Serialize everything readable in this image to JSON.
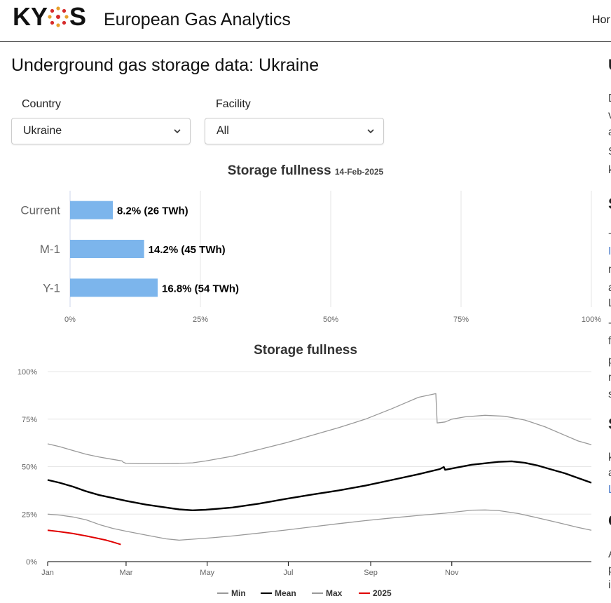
{
  "header": {
    "logo_text": "KYOS",
    "site_title": "European Gas Analytics",
    "nav_home": "Hor"
  },
  "page": {
    "title": "Underground gas storage data: Ukraine"
  },
  "filters": {
    "country": {
      "label": "Country",
      "value": "Ukraine"
    },
    "facility": {
      "label": "Facility",
      "value": "All"
    }
  },
  "right_column_fragments": [
    {
      "t": "U",
      "h": true
    },
    {
      "t": "D"
    },
    {
      "t": "v"
    },
    {
      "t": "a"
    },
    {
      "t": "S"
    },
    {
      "t": "k"
    },
    {
      "t": "S",
      "h": true
    },
    {
      "t": "-"
    },
    {
      "t": "I",
      "link": true
    },
    {
      "t": "r"
    },
    {
      "t": "a"
    },
    {
      "t": "L"
    },
    {
      "t": "-"
    },
    {
      "t": "f"
    },
    {
      "t": "p"
    },
    {
      "t": "r"
    },
    {
      "t": "s"
    },
    {
      "t": "S",
      "h": true
    },
    {
      "t": "k"
    },
    {
      "t": "a"
    },
    {
      "t": "L",
      "link": true
    },
    {
      "t": "C",
      "h": true
    },
    {
      "t": "A"
    },
    {
      "t": "p"
    },
    {
      "t": "i"
    }
  ],
  "chart_data": [
    {
      "type": "bar",
      "orientation": "horizontal",
      "title": "Storage fullness",
      "date": "14-Feb-2025",
      "categories": [
        "Current",
        "M-1",
        "Y-1"
      ],
      "values": [
        8.2,
        14.2,
        16.8
      ],
      "labels": [
        "8.2% (26 TWh)",
        "14.2% (45 TWh)",
        "16.8% (54 TWh)"
      ],
      "xlim": [
        0,
        100
      ],
      "xticks": [
        "0%",
        "25%",
        "50%",
        "75%",
        "100%"
      ],
      "bar_color": "#7cb5ec",
      "grid": true
    },
    {
      "type": "line",
      "title": "Storage fullness",
      "ylim": [
        0,
        100
      ],
      "yticks": [
        "0%",
        "25%",
        "50%",
        "75%",
        "100%"
      ],
      "xticks": [
        "Jan",
        "Mar",
        "May",
        "Jul",
        "Sep",
        "Nov"
      ],
      "x_unit": "day of year",
      "legend_position": "bottom",
      "series": [
        {
          "name": "Min",
          "color": "#999999",
          "width": 1.3,
          "points": [
            [
              1,
              25
            ],
            [
              10,
              24.5
            ],
            [
              20,
              23.5
            ],
            [
              30,
              22
            ],
            [
              40,
              19.5
            ],
            [
              50,
              17.5
            ],
            [
              60,
              16
            ],
            [
              75,
              14
            ],
            [
              90,
              12
            ],
            [
              100,
              11.3
            ],
            [
              110,
              11.8
            ],
            [
              125,
              12.6
            ],
            [
              140,
              13.5
            ],
            [
              160,
              15
            ],
            [
              180,
              16.6
            ],
            [
              200,
              18.3
            ],
            [
              220,
              20
            ],
            [
              240,
              21.6
            ],
            [
              260,
              23
            ],
            [
              280,
              24.3
            ],
            [
              300,
              25.5
            ],
            [
              320,
              27.1
            ],
            [
              330,
              27.2
            ],
            [
              340,
              26.9
            ],
            [
              355,
              25.3
            ],
            [
              370,
              23
            ],
            [
              385,
              20.5
            ],
            [
              400,
              18
            ],
            [
              410,
              16.5
            ]
          ]
        },
        {
          "name": "Mean",
          "color": "#000000",
          "width": 2.4,
          "points": [
            [
              1,
              43
            ],
            [
              10,
              41.5
            ],
            [
              20,
              39.5
            ],
            [
              30,
              37
            ],
            [
              40,
              35
            ],
            [
              50,
              33.5
            ],
            [
              60,
              32
            ],
            [
              75,
              30
            ],
            [
              90,
              28.5
            ],
            [
              100,
              27.5
            ],
            [
              110,
              27
            ],
            [
              120,
              27.3
            ],
            [
              140,
              28.5
            ],
            [
              160,
              30.5
            ],
            [
              180,
              33
            ],
            [
              200,
              35.3
            ],
            [
              220,
              37.5
            ],
            [
              240,
              40
            ],
            [
              260,
              43
            ],
            [
              280,
              46
            ],
            [
              296,
              48.7
            ],
            [
              299,
              49.8
            ],
            [
              300,
              48.3
            ],
            [
              305,
              49
            ],
            [
              320,
              51
            ],
            [
              340,
              52.5
            ],
            [
              350,
              52.8
            ],
            [
              360,
              52
            ],
            [
              370,
              50.5
            ],
            [
              380,
              48.5
            ],
            [
              390,
              46.5
            ],
            [
              400,
              44
            ],
            [
              410,
              41.5
            ]
          ]
        },
        {
          "name": "Max",
          "color": "#999999",
          "width": 1.3,
          "points": [
            [
              1,
              62
            ],
            [
              10,
              60.5
            ],
            [
              20,
              58.5
            ],
            [
              30,
              56.5
            ],
            [
              40,
              55
            ],
            [
              50,
              53.8
            ],
            [
              57,
              53
            ],
            [
              58,
              52.3
            ],
            [
              60,
              51.7
            ],
            [
              70,
              51.5
            ],
            [
              85,
              51.5
            ],
            [
              100,
              51.7
            ],
            [
              110,
              52
            ],
            [
              120,
              53
            ],
            [
              140,
              55.5
            ],
            [
              160,
              59
            ],
            [
              180,
              62.5
            ],
            [
              200,
              66.5
            ],
            [
              220,
              70.5
            ],
            [
              240,
              75
            ],
            [
              260,
              80.5
            ],
            [
              270,
              83.5
            ],
            [
              280,
              86.5
            ],
            [
              293,
              88.4
            ],
            [
              294,
              73
            ],
            [
              300,
              73.5
            ],
            [
              305,
              75
            ],
            [
              315,
              76.2
            ],
            [
              330,
              77
            ],
            [
              345,
              76.5
            ],
            [
              360,
              74.5
            ],
            [
              375,
              71
            ],
            [
              390,
              66.5
            ],
            [
              400,
              63.5
            ],
            [
              410,
              61.5
            ]
          ]
        },
        {
          "name": "2025",
          "color": "#e00000",
          "width": 2,
          "points": [
            [
              1,
              16.5
            ],
            [
              10,
              15.8
            ],
            [
              20,
              14.8
            ],
            [
              30,
              13.5
            ],
            [
              37,
              12.5
            ],
            [
              45,
              11.3
            ],
            [
              50,
              10.3
            ],
            [
              56,
              9
            ]
          ]
        }
      ]
    }
  ]
}
